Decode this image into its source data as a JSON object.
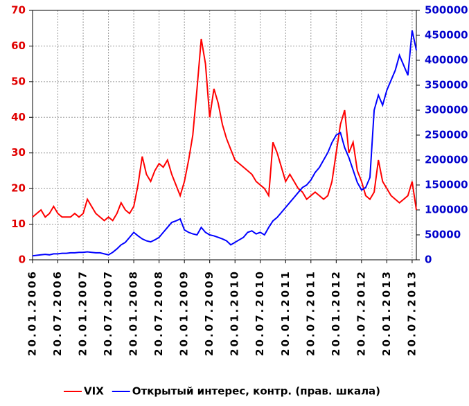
{
  "chart_data": {
    "type": "line",
    "categories": [
      "20.01.2006",
      null,
      null,
      null,
      null,
      null,
      "20.07.2006",
      null,
      null,
      null,
      null,
      null,
      "20.01.2007",
      null,
      null,
      null,
      null,
      null,
      "20.07.2007",
      null,
      null,
      null,
      null,
      null,
      "20.01.2008",
      null,
      null,
      null,
      null,
      null,
      "20.07.2008",
      null,
      null,
      null,
      null,
      null,
      "20.01.2009",
      null,
      null,
      null,
      null,
      null,
      "20.07.2009",
      null,
      null,
      null,
      null,
      null,
      "20.01.2010",
      null,
      null,
      null,
      null,
      null,
      "20.07.2010",
      null,
      null,
      null,
      null,
      null,
      "20.01.2011",
      null,
      null,
      null,
      null,
      null,
      "20.07.2011",
      null,
      null,
      null,
      null,
      null,
      "20.01.2012",
      null,
      null,
      null,
      null,
      null,
      "20.07.2012",
      null,
      null,
      null,
      null,
      null,
      "20.01.2013",
      null,
      null,
      null,
      null,
      null,
      "20.07.2013",
      null
    ],
    "series": [
      {
        "name": "VIX",
        "color": "#ff0000",
        "values": [
          12,
          13,
          14,
          12,
          13,
          15,
          13,
          12,
          12,
          12,
          13,
          12,
          13,
          17,
          15,
          13,
          12,
          11,
          12,
          11,
          13,
          16,
          14,
          13,
          15,
          21,
          29,
          24,
          22,
          25,
          27,
          26,
          28,
          24,
          21,
          18,
          22,
          28,
          35,
          48,
          62,
          55,
          40,
          48,
          44,
          38,
          34,
          31,
          28,
          27,
          26,
          25,
          24,
          22,
          21,
          20,
          18,
          33,
          30,
          26,
          22,
          24,
          22,
          20,
          19,
          17,
          18,
          19,
          18,
          17,
          18,
          22,
          30,
          38,
          42,
          30,
          33,
          25,
          22,
          18,
          17,
          19,
          28,
          22,
          20,
          18,
          17,
          16,
          17,
          18,
          22,
          14
        ]
      },
      {
        "name": "Открытый интерес, контр. (прав. шкала)",
        "color": "#0000ff",
        "axis": "y2",
        "values": [
          8000,
          9000,
          10000,
          11000,
          10000,
          12000,
          12000,
          13000,
          13000,
          14000,
          14000,
          15000,
          15000,
          16000,
          15000,
          14000,
          14000,
          12000,
          10000,
          15000,
          22000,
          30000,
          35000,
          45000,
          55000,
          48000,
          42000,
          38000,
          36000,
          40000,
          45000,
          55000,
          65000,
          75000,
          78000,
          82000,
          60000,
          55000,
          52000,
          50000,
          65000,
          55000,
          50000,
          48000,
          45000,
          42000,
          38000,
          30000,
          35000,
          40000,
          45000,
          55000,
          58000,
          52000,
          55000,
          50000,
          65000,
          78000,
          85000,
          95000,
          105000,
          115000,
          125000,
          135000,
          145000,
          150000,
          160000,
          175000,
          185000,
          200000,
          215000,
          235000,
          250000,
          255000,
          225000,
          205000,
          180000,
          155000,
          140000,
          145000,
          165000,
          300000,
          330000,
          310000,
          340000,
          360000,
          380000,
          410000,
          390000,
          370000,
          460000,
          420000
        ]
      }
    ],
    "ylim": [
      0,
      70
    ],
    "yticks": [
      0,
      10,
      20,
      30,
      40,
      50,
      60,
      70
    ],
    "y2lim": [
      0,
      500000
    ],
    "y2ticks": [
      0,
      50000,
      100000,
      150000,
      200000,
      250000,
      300000,
      350000,
      400000,
      450000,
      500000
    ],
    "grid": true
  }
}
